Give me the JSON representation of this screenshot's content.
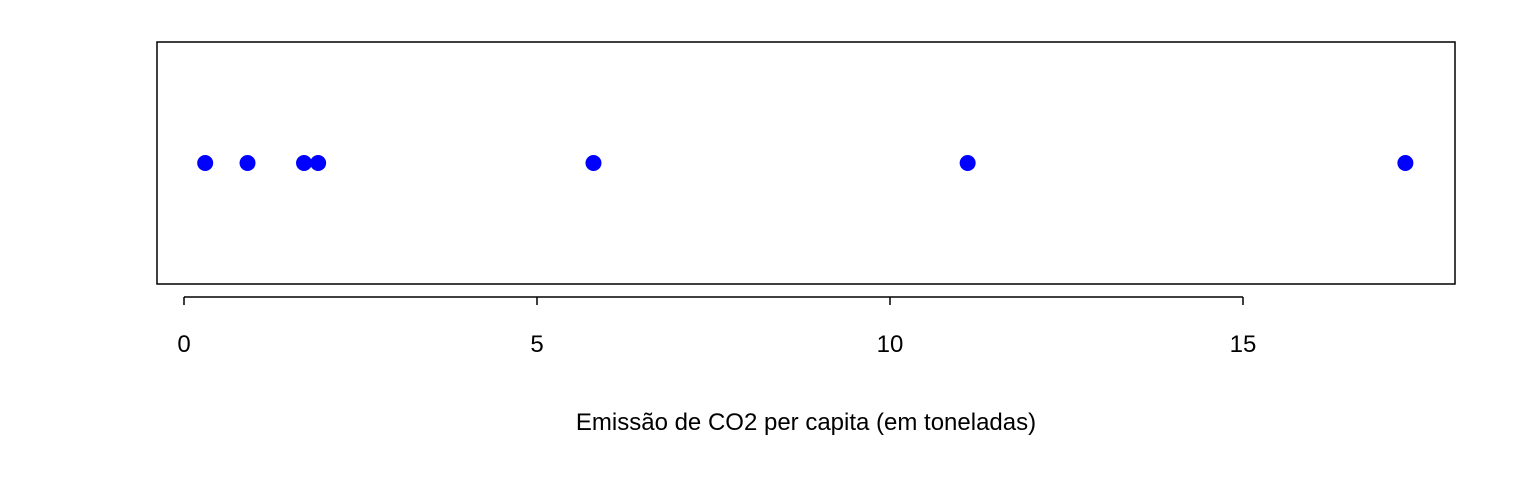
{
  "chart_data": {
    "type": "scatter",
    "title": "",
    "xlabel": "Emissão de CO2 per capita (em toneladas)",
    "ylabel": "",
    "xlim": [
      0,
      18
    ],
    "xticks": [
      0,
      5,
      10,
      15
    ],
    "xtick_labels": [
      "0",
      "5",
      "10",
      "15"
    ],
    "grid": false,
    "legend": "none",
    "point_color": "#0000ff",
    "series": [
      {
        "values": [
          0.3,
          0.9,
          1.7,
          1.9,
          5.8,
          11.1,
          17.3
        ]
      }
    ]
  }
}
